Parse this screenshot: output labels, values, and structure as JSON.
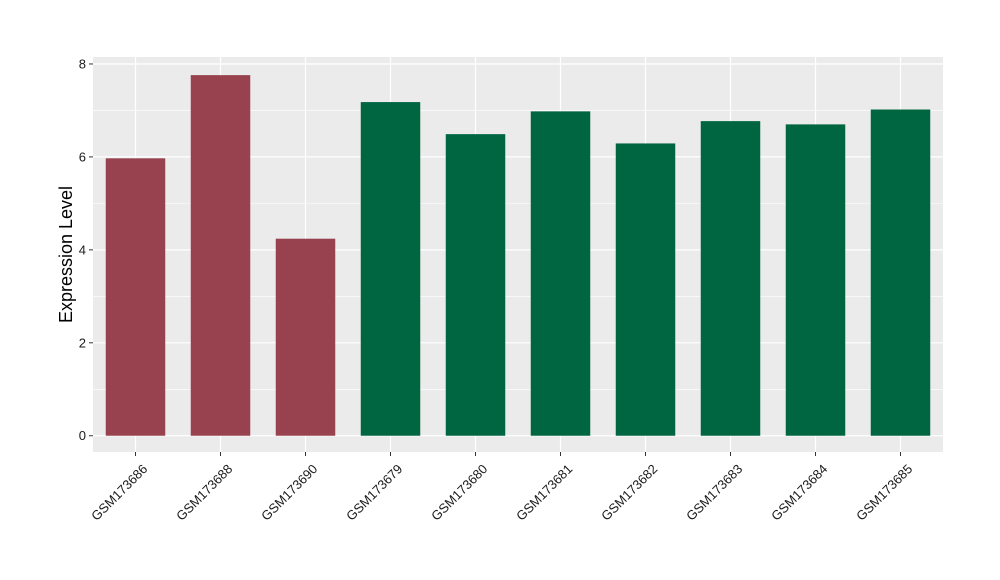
{
  "chart_data": {
    "type": "bar",
    "title": "",
    "xlabel": "",
    "ylabel": "Expression Level",
    "ylim": [
      -0.35,
      8.15
    ],
    "yticks": [
      0,
      2,
      4,
      6,
      8
    ],
    "grid": true,
    "legend": "none",
    "categories": [
      "GSM173686",
      "GSM173688",
      "GSM173690",
      "GSM173679",
      "GSM173680",
      "GSM173681",
      "GSM173682",
      "GSM173683",
      "GSM173684",
      "GSM173685"
    ],
    "values": [
      5.97,
      7.76,
      4.24,
      7.18,
      6.49,
      6.98,
      6.29,
      6.77,
      6.7,
      7.02
    ],
    "bar_colors": [
      "#99424f",
      "#99424f",
      "#99424f",
      "#006642",
      "#006642",
      "#006642",
      "#006642",
      "#006642",
      "#006642",
      "#006642"
    ]
  },
  "style": {
    "panel_background": "#ebebeb",
    "grid_color": "#ffffff",
    "tick_color": "#333333"
  }
}
